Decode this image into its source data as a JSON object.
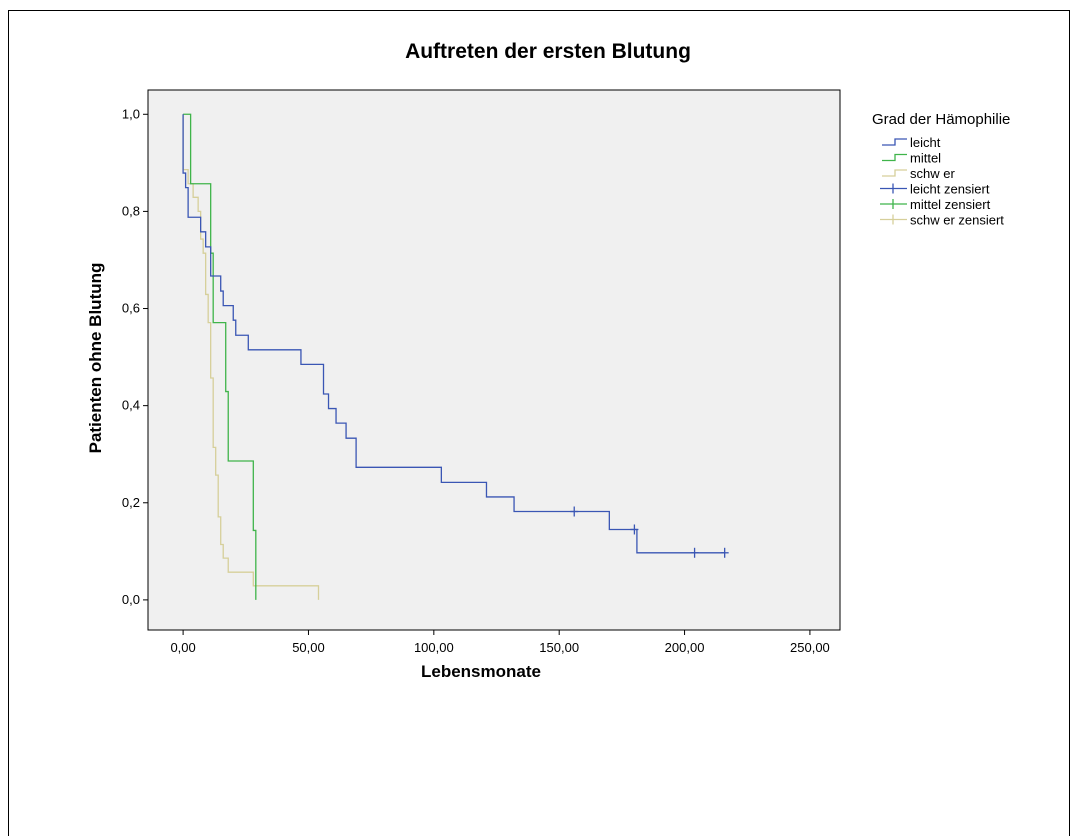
{
  "chart_data": {
    "type": "line",
    "subtype": "kaplan-meier step",
    "title": "Auftreten der ersten Blutung",
    "xlabel": "Lebensmonate",
    "ylabel": "Patienten ohne Blutung",
    "xlim": [
      -14,
      262
    ],
    "ylim": [
      -0.062,
      1.05
    ],
    "x_ticks": [
      0,
      50,
      100,
      150,
      200,
      250
    ],
    "x_tick_labels": [
      "0,00",
      "50,00",
      "100,00",
      "150,00",
      "200,00",
      "250,00"
    ],
    "y_ticks": [
      0,
      0.2,
      0.4,
      0.6,
      0.8,
      1.0
    ],
    "y_tick_labels": [
      "0,0",
      "0,2",
      "0,4",
      "0,6",
      "0,8",
      "1,0"
    ],
    "grid": false,
    "plot_background": "#f0f0f0",
    "legend": {
      "title": "Grad der Hämophilie",
      "placement": "right",
      "entries": [
        {
          "label": "leicht",
          "kind": "step",
          "color": "#3a56b4"
        },
        {
          "label": "mittel",
          "kind": "step",
          "color": "#3fb44a"
        },
        {
          "label": "schw er",
          "kind": "step",
          "color": "#d6cf9a"
        },
        {
          "label": "leicht zensiert",
          "kind": "censor",
          "color": "#3a56b4"
        },
        {
          "label": "mittel zensiert",
          "kind": "censor",
          "color": "#3fb44a"
        },
        {
          "label": "schw er zensiert",
          "kind": "censor",
          "color": "#d6cf9a"
        }
      ]
    },
    "series": [
      {
        "name": "leicht",
        "color": "#3a56b4",
        "x": [
          0,
          1,
          2,
          7,
          9,
          11,
          15,
          16,
          18,
          20,
          21,
          26,
          47,
          56,
          58,
          61,
          65,
          69,
          72,
          103,
          121,
          132,
          156,
          170,
          180,
          181,
          204,
          216
        ],
        "y": [
          0.879,
          0.849,
          0.788,
          0.758,
          0.727,
          0.667,
          0.636,
          0.606,
          0.606,
          0.576,
          0.545,
          0.515,
          0.485,
          0.424,
          0.394,
          0.364,
          0.333,
          0.273,
          0.273,
          0.242,
          0.212,
          0.182,
          0.182,
          0.145,
          0.145,
          0.097,
          0.097,
          0.097
        ],
        "censored_x": [
          156,
          180,
          204,
          216
        ]
      },
      {
        "name": "mittel",
        "color": "#3fb44a",
        "x": [
          0,
          3,
          11,
          12,
          17,
          18,
          28,
          29
        ],
        "y": [
          1.0,
          0.857,
          0.714,
          0.571,
          0.429,
          0.286,
          0.143,
          0.0
        ],
        "censored_x": []
      },
      {
        "name": "schw er",
        "color": "#d6cf9a",
        "x": [
          0,
          2,
          4,
          6,
          7,
          8,
          9,
          10,
          11,
          12,
          13,
          14,
          15,
          16,
          18,
          28,
          54
        ],
        "y": [
          0.886,
          0.857,
          0.829,
          0.8,
          0.743,
          0.714,
          0.629,
          0.571,
          0.457,
          0.314,
          0.257,
          0.171,
          0.114,
          0.086,
          0.057,
          0.029,
          0.0
        ],
        "censored_x": []
      }
    ]
  }
}
